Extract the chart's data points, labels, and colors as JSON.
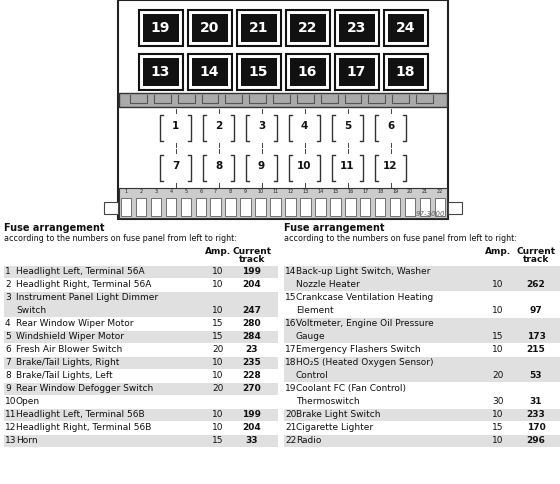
{
  "bg_color": "#ffffff",
  "fuse_section_heading": "Fuse arrangement",
  "fuse_section_sub": "according to the numbers on fuse panel from left to right:",
  "watermark": "97-3000",
  "large_row1": [
    19,
    20,
    21,
    22,
    23,
    24
  ],
  "large_row2": [
    13,
    14,
    15,
    16,
    17,
    18
  ],
  "small_row1": [
    1,
    2,
    3,
    4,
    5,
    6
  ],
  "small_row2": [
    7,
    8,
    9,
    10,
    11,
    12
  ],
  "left_fuses": [
    {
      "num": 1,
      "desc": "Headlight Left, Terminal 56A",
      "desc2": "",
      "amp": 10,
      "track": 199
    },
    {
      "num": 2,
      "desc": "Headlight Right, Terminal 56A",
      "desc2": "",
      "amp": 10,
      "track": 204
    },
    {
      "num": 3,
      "desc": "Instrument Panel Light Dimmer",
      "desc2": "Switch",
      "amp": 10,
      "track": 247
    },
    {
      "num": 4,
      "desc": "Rear Window Wiper Motor",
      "desc2": "",
      "amp": 15,
      "track": 280
    },
    {
      "num": 5,
      "desc": "Windshield Wiper Motor",
      "desc2": "",
      "amp": 15,
      "track": 284
    },
    {
      "num": 6,
      "desc": "Fresh Air Blower Switch",
      "desc2": "",
      "amp": 20,
      "track": 23
    },
    {
      "num": 7,
      "desc": "Brake/Tail Lights, Right",
      "desc2": "",
      "amp": 10,
      "track": 235
    },
    {
      "num": 8,
      "desc": "Brake/Tail Lights, Left",
      "desc2": "",
      "amp": 10,
      "track": 228
    },
    {
      "num": 9,
      "desc": "Rear Window Defogger Switch",
      "desc2": "",
      "amp": 20,
      "track": 270
    },
    {
      "num": 10,
      "desc": "Open",
      "desc2": "",
      "amp": null,
      "track": null
    },
    {
      "num": 11,
      "desc": "Headlight Left, Terminal 56B",
      "desc2": "",
      "amp": 10,
      "track": 199
    },
    {
      "num": 12,
      "desc": "Headlight Right, Terminal 56B",
      "desc2": "",
      "amp": 10,
      "track": 204
    },
    {
      "num": 13,
      "desc": "Horn",
      "desc2": "",
      "amp": 15,
      "track": 33
    }
  ],
  "right_fuses": [
    {
      "num": 14,
      "desc": "Back-up Light Switch, Washer",
      "desc2": "Nozzle Heater",
      "amp": 10,
      "track": 262
    },
    {
      "num": 15,
      "desc": "Crankcase Ventilation Heating",
      "desc2": "Element",
      "amp": 10,
      "track": 97
    },
    {
      "num": 16,
      "desc": "Voltmeter, Engine Oil Pressure",
      "desc2": "Gauge",
      "amp": 15,
      "track": 173
    },
    {
      "num": 17,
      "desc": "Emergency Flashers Switch",
      "desc2": "",
      "amp": 10,
      "track": 215
    },
    {
      "num": 18,
      "desc": "HO₂S (Heated Oxygen Sensor)",
      "desc2": "Control",
      "amp": 20,
      "track": 53
    },
    {
      "num": 19,
      "desc": "Coolant FC (Fan Control)",
      "desc2": "Thermoswitch",
      "amp": 30,
      "track": 31
    },
    {
      "num": 20,
      "desc": "Brake Light Switch",
      "desc2": "",
      "amp": 10,
      "track": 233
    },
    {
      "num": 21,
      "desc": "Cigarette Lighter",
      "desc2": "",
      "amp": 15,
      "track": 170
    },
    {
      "num": 22,
      "desc": "Radio",
      "desc2": "",
      "amp": 10,
      "track": 296
    }
  ]
}
